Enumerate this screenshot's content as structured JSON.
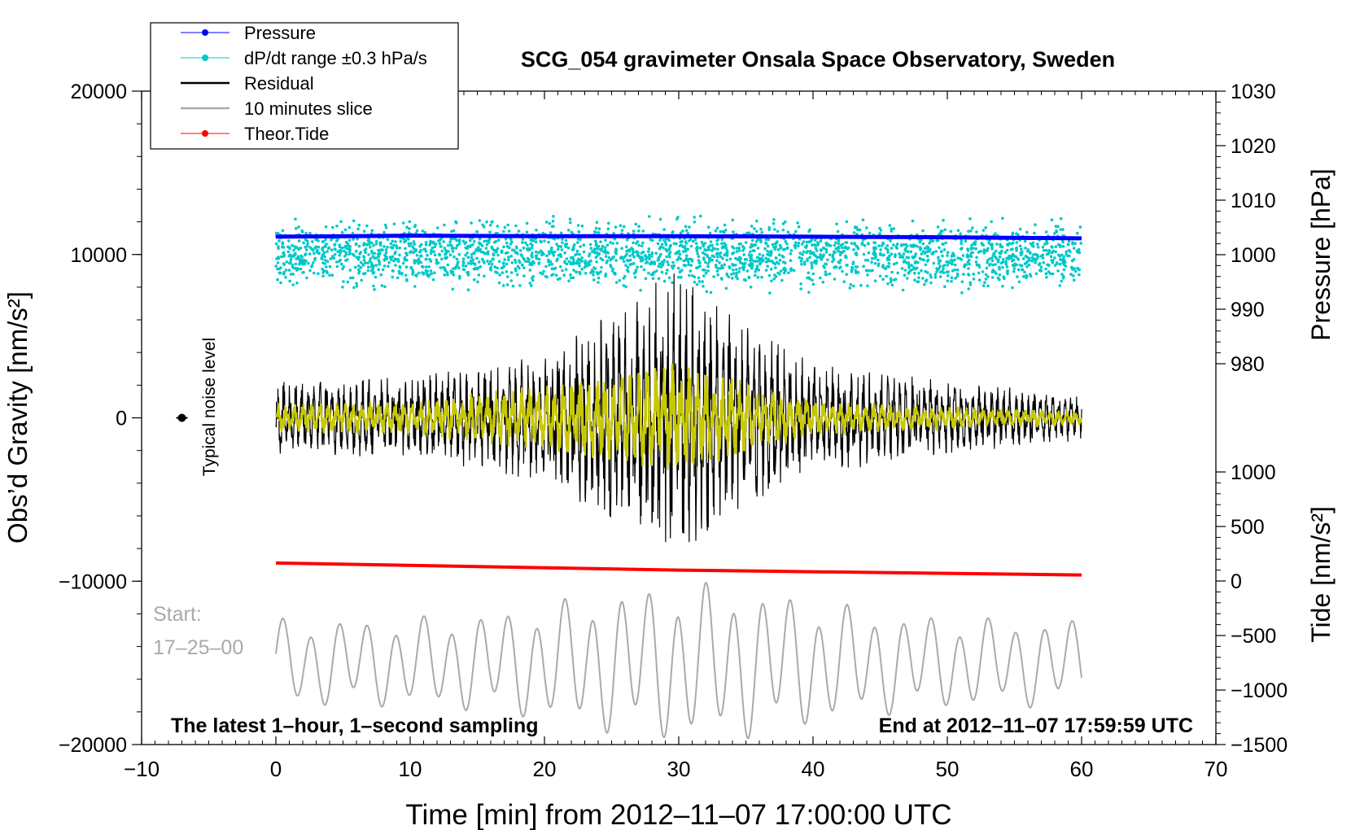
{
  "chart_data": {
    "type": "line",
    "title": "SCG_054 gravimeter Onsala Space Observatory, Sweden",
    "xlabel": "Time [min] from 2012–11–07 17:00:00 UTC",
    "ylabel_left": "Obs’d Gravity [nm/s²]",
    "ylabel_right_top": "Pressure [hPa]",
    "ylabel_right_bottom": "Tide [nm/s²]",
    "xlim": [
      -10,
      70
    ],
    "ylim_left": [
      -20000,
      20000
    ],
    "ylim_pressure": [
      960,
      1030
    ],
    "ylim_tide": [
      -1500,
      1500
    ],
    "xticks": [
      -10,
      0,
      10,
      20,
      30,
      40,
      50,
      60,
      70
    ],
    "xtick_labels": [
      "−10",
      "0",
      "10",
      "20",
      "30",
      "40",
      "50",
      "60",
      "70"
    ],
    "yticks_left": [
      20000,
      10000,
      0,
      -10000,
      -20000
    ],
    "ytick_left_labels": [
      "20000",
      "10000",
      "0",
      "−10000",
      "−20000"
    ],
    "yticks_pressure": [
      1030,
      1020,
      1010,
      1000,
      990,
      980
    ],
    "ytick_pressure_labels": [
      "1030",
      "1020",
      "1010",
      "1000",
      "990",
      "980"
    ],
    "yticks_tide": [
      1000,
      500,
      0,
      -500,
      -1000,
      -1500
    ],
    "ytick_tide_labels": [
      "1000",
      "500",
      "0",
      "−500",
      "−1000",
      "−1500"
    ],
    "legend": {
      "position": "top-left",
      "entries": [
        {
          "label": "Pressure",
          "color": "#0000ff",
          "marker": true
        },
        {
          "label": "dP/dt range ±0.3 hPa/s",
          "color": "#00c8c8",
          "marker": true
        },
        {
          "label": "Residual",
          "color": "#000000",
          "marker": false
        },
        {
          "label": "10 minutes slice",
          "color": "#aaaaaa",
          "marker": false
        },
        {
          "label": "Theor.Tide",
          "color": "#ff0000",
          "marker": true
        }
      ]
    },
    "series": [
      {
        "name": "Pressure",
        "axis": "pressure",
        "color": "#0000ff",
        "x": [
          0,
          10,
          20,
          30,
          40,
          50,
          60
        ],
        "values": [
          1003.3,
          1003.5,
          1003.4,
          1003.4,
          1003.3,
          1003.2,
          1003.0
        ]
      },
      {
        "name": "dP/dt range ±0.3 hPa/s",
        "axis": "left",
        "color": "#00c8c8",
        "center": 10000,
        "spread": 900,
        "x_range": [
          0,
          60
        ]
      },
      {
        "name": "Residual",
        "axis": "left",
        "color": "#000000",
        "x_range": [
          0,
          60
        ],
        "envelope": {
          "x": [
            0,
            10,
            20,
            25,
            30,
            35,
            40,
            50,
            60
          ],
          "amp": [
            2000,
            2200,
            3500,
            6000,
            8000,
            5000,
            3000,
            2000,
            1200
          ]
        }
      },
      {
        "name": "Filtered residual",
        "axis": "left",
        "color": "#c8c800",
        "x_range": [
          0,
          60
        ],
        "envelope": {
          "x": [
            0,
            10,
            20,
            25,
            30,
            35,
            40,
            50,
            60
          ],
          "amp": [
            800,
            900,
            1800,
            2500,
            3000,
            2000,
            1000,
            600,
            400
          ]
        }
      },
      {
        "name": "10 minutes slice",
        "axis": "left",
        "color": "#aaaaaa",
        "x_range": [
          0,
          60
        ],
        "center": -15000,
        "amplitude": 4500
      },
      {
        "name": "Theor.Tide",
        "axis": "tide",
        "color": "#ff0000",
        "x": [
          0,
          30,
          60
        ],
        "values": [
          165,
          100,
          55
        ]
      }
    ],
    "noise_marker": {
      "x": -7,
      "y": 0,
      "label": "Typical noise level"
    },
    "annotations": {
      "start_label": "Start:",
      "start_time": "17–25–00",
      "bottom_left": "The latest 1–hour, 1–second sampling",
      "bottom_right": "End at 2012–11–07 17:59:59 UTC"
    }
  }
}
